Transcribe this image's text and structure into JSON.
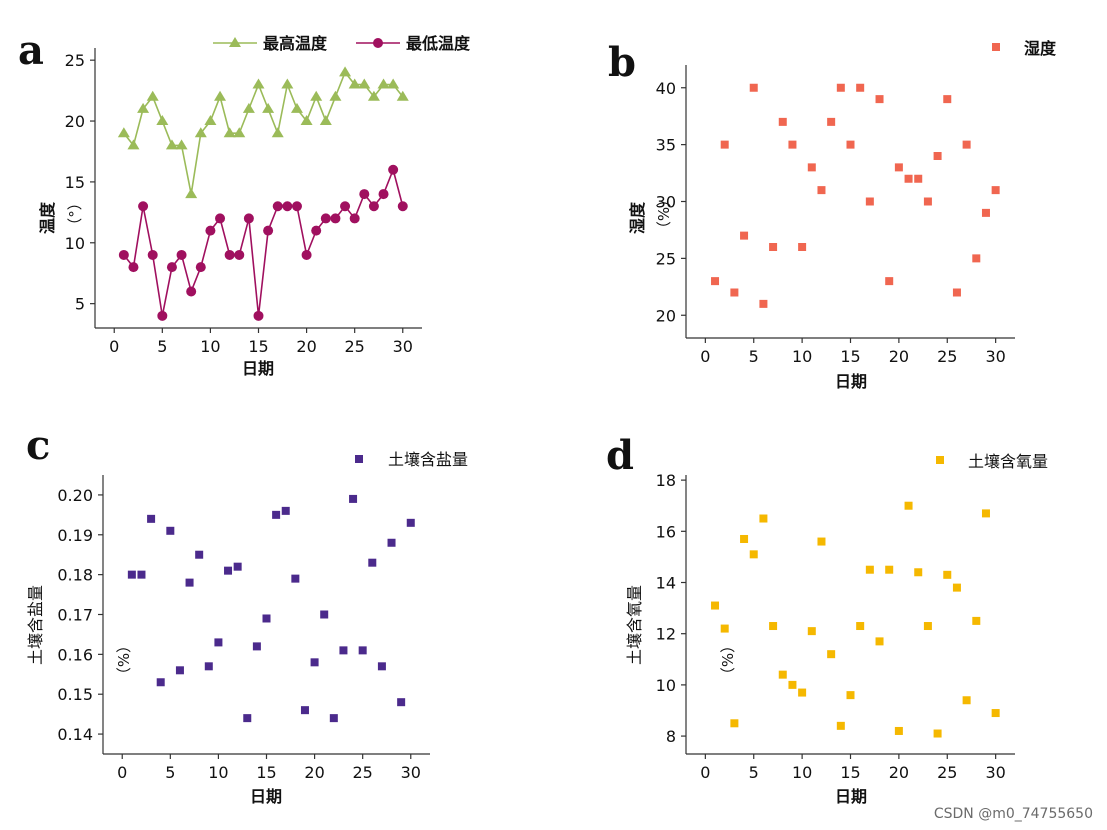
{
  "chart_data": [
    {
      "id": "a",
      "type": "line",
      "panel_label": "a",
      "xlabel": "日期",
      "ylabel": "温度",
      "ylabel_unit": "（°）",
      "xlim": [
        -2,
        32
      ],
      "ylim": [
        3,
        26
      ],
      "xticks": [
        0,
        5,
        10,
        15,
        20,
        25,
        30
      ],
      "yticks": [
        5,
        10,
        15,
        20,
        25
      ],
      "legend_position": "top-right",
      "series": [
        {
          "name": "最高温度",
          "color": "#9bbb59",
          "marker": "triangle",
          "x": [
            1,
            2,
            3,
            4,
            5,
            6,
            7,
            8,
            9,
            10,
            11,
            12,
            13,
            14,
            15,
            16,
            17,
            18,
            19,
            20,
            21,
            22,
            23,
            24,
            25,
            26,
            27,
            28,
            29,
            30
          ],
          "values": [
            19,
            18,
            21,
            22,
            20,
            18,
            18,
            14,
            19,
            20,
            22,
            19,
            19,
            21,
            23,
            21,
            19,
            23,
            21,
            20,
            22,
            20,
            22,
            24,
            23,
            23,
            22,
            23,
            23,
            22
          ]
        },
        {
          "name": "最低温度",
          "color": "#a0105f",
          "marker": "circle",
          "x": [
            1,
            2,
            3,
            4,
            5,
            6,
            7,
            8,
            9,
            10,
            11,
            12,
            13,
            14,
            15,
            16,
            17,
            18,
            19,
            20,
            21,
            22,
            23,
            24,
            25,
            26,
            27,
            28,
            29,
            30
          ],
          "values": [
            9,
            8,
            13,
            9,
            4,
            8,
            9,
            6,
            8,
            11,
            12,
            9,
            9,
            12,
            4,
            11,
            13,
            13,
            13,
            9,
            11,
            12,
            12,
            13,
            12,
            14,
            13,
            14,
            16,
            13
          ]
        }
      ]
    },
    {
      "id": "b",
      "type": "scatter",
      "panel_label": "b",
      "xlabel": "日期",
      "ylabel": "湿度",
      "ylabel_unit": "（%）",
      "xlim": [
        -2,
        32
      ],
      "ylim": [
        18,
        42
      ],
      "xticks": [
        0,
        5,
        10,
        15,
        20,
        25,
        30
      ],
      "yticks": [
        20,
        25,
        30,
        35,
        40
      ],
      "legend_position": "top-right",
      "series": [
        {
          "name": "湿度",
          "color": "#f06650",
          "marker": "square",
          "x": [
            1,
            2,
            3,
            4,
            5,
            6,
            7,
            8,
            9,
            10,
            11,
            12,
            13,
            14,
            15,
            16,
            17,
            18,
            19,
            20,
            21,
            22,
            23,
            24,
            25,
            26,
            27,
            28,
            29,
            30
          ],
          "values": [
            23,
            35,
            22,
            27,
            40,
            21,
            26,
            37,
            35,
            26,
            33,
            31,
            37,
            40,
            35,
            40,
            30,
            39,
            23,
            33,
            32,
            32,
            30,
            34,
            39,
            22,
            35,
            25,
            29,
            31
          ]
        }
      ]
    },
    {
      "id": "c",
      "type": "scatter",
      "panel_label": "c",
      "xlabel": "日期",
      "ylabel": "土壤含盐量",
      "ylabel_unit": "（%）",
      "xlim": [
        -2,
        32
      ],
      "ylim": [
        0.135,
        0.205
      ],
      "xticks": [
        0,
        5,
        10,
        15,
        20,
        25,
        30
      ],
      "yticks": [
        0.14,
        0.15,
        0.16,
        0.17,
        0.18,
        0.19,
        0.2
      ],
      "ytick_labels": [
        "0.14",
        "0.15",
        "0.16",
        "0.17",
        "0.18",
        "0.19",
        "0.20"
      ],
      "legend_position": "top-right",
      "series": [
        {
          "name": "土壤含盐量",
          "color": "#4b2a8c",
          "marker": "square",
          "x": [
            1,
            2,
            3,
            4,
            5,
            6,
            7,
            8,
            9,
            10,
            11,
            12,
            13,
            14,
            15,
            16,
            17,
            18,
            19,
            20,
            21,
            22,
            23,
            24,
            25,
            26,
            27,
            28,
            29,
            30
          ],
          "values": [
            0.18,
            0.18,
            0.194,
            0.153,
            0.191,
            0.156,
            0.178,
            0.185,
            0.157,
            0.163,
            0.181,
            0.182,
            0.144,
            0.162,
            0.169,
            0.195,
            0.196,
            0.179,
            0.146,
            0.158,
            0.17,
            0.144,
            0.161,
            0.199,
            0.161,
            0.183,
            0.157,
            0.188,
            0.148,
            0.193
          ]
        }
      ]
    },
    {
      "id": "d",
      "type": "scatter",
      "panel_label": "d",
      "xlabel": "日期",
      "ylabel": "土壤含氧量",
      "ylabel_unit": "（%）",
      "xlim": [
        -2,
        32
      ],
      "ylim": [
        7.3,
        18.2
      ],
      "xticks": [
        0,
        5,
        10,
        15,
        20,
        25,
        30
      ],
      "yticks": [
        8,
        10,
        12,
        14,
        16,
        18
      ],
      "legend_position": "top-right",
      "series": [
        {
          "name": "土壤含氧量",
          "color": "#f5b800",
          "marker": "square",
          "x": [
            1,
            2,
            3,
            4,
            5,
            6,
            7,
            8,
            9,
            10,
            11,
            12,
            13,
            14,
            15,
            16,
            17,
            18,
            19,
            20,
            21,
            22,
            23,
            24,
            25,
            26,
            27,
            28,
            29,
            30
          ],
          "values": [
            13.1,
            12.2,
            8.5,
            15.7,
            15.1,
            16.5,
            12.3,
            10.4,
            10.0,
            9.7,
            12.1,
            15.6,
            11.2,
            8.4,
            9.6,
            12.3,
            14.5,
            11.7,
            14.5,
            8.2,
            17.0,
            14.4,
            12.3,
            8.1,
            14.3,
            13.8,
            9.4,
            12.5,
            16.7,
            8.9
          ]
        }
      ]
    }
  ],
  "watermark": "CSDN @m0_74755650"
}
